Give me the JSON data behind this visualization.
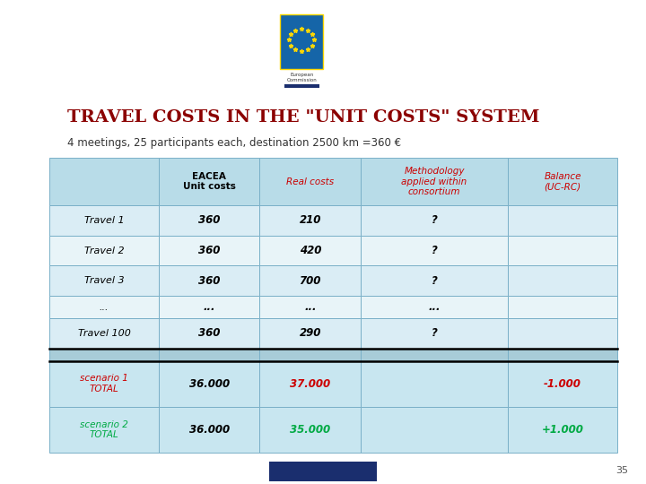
{
  "title": "TRAVEL COSTS IN THE \"UNIT COSTS\" SYSTEM",
  "subtitle": "4 meetings, 25 participants each, destination 2500 km =360 €",
  "title_color": "#8B0000",
  "subtitle_color": "#333333",
  "slide_bg": "#FFFFFF",
  "top_bar_color": "#1565a8",
  "table_header_bg": "#b8dce8",
  "table_data_bg_odd": "#daedf5",
  "table_data_bg_even": "#e8f4f8",
  "table_separator_bg": "#a8ccd8",
  "table_scenario_bg": "#c8e6f0",
  "table_border_color": "#7ab0c8",
  "table_border_heavy": "#000000",
  "col_headers": [
    "EACEA\nUnit costs",
    "Real costs",
    "Methodology\napplied within\nconsortium",
    "Balance\n(UC-RC)"
  ],
  "col_header_colors": [
    "#000000",
    "#cc0000",
    "#cc0000",
    "#cc0000"
  ],
  "rows": [
    {
      "label": "Travel 1",
      "eacea": "360",
      "real": "210",
      "method": "?",
      "balance": ""
    },
    {
      "label": "Travel 2",
      "eacea": "360",
      "real": "420",
      "method": "?",
      "balance": ""
    },
    {
      "label": "Travel 3",
      "eacea": "360",
      "real": "700",
      "method": "?",
      "balance": ""
    },
    {
      "label": "...",
      "eacea": "...",
      "real": "...",
      "method": "...",
      "balance": ""
    },
    {
      "label": "Travel 100",
      "eacea": "360",
      "real": "290",
      "method": "?",
      "balance": ""
    },
    {
      "label": "",
      "eacea": "",
      "real": "",
      "method": "",
      "balance": ""
    },
    {
      "label": "scenario 1\nTOTAL",
      "eacea": "36.000",
      "real": "37.000",
      "method": "",
      "balance": "-1.000"
    },
    {
      "label": "scenario 2\nTOTAL",
      "eacea": "36.000",
      "real": "35.000",
      "method": "",
      "balance": "+1.000"
    }
  ],
  "row_label_colors": [
    "#000000",
    "#000000",
    "#000000",
    "#000000",
    "#000000",
    "#000000",
    "#cc0000",
    "#00aa44"
  ],
  "row_real_colors": [
    "#000000",
    "#000000",
    "#000000",
    "#000000",
    "#000000",
    "#000000",
    "#cc0000",
    "#00aa44"
  ],
  "row_balance_colors": [
    "#000000",
    "#000000",
    "#000000",
    "#000000",
    "#000000",
    "#000000",
    "#cc0000",
    "#00aa44"
  ],
  "page_number": "35",
  "bottom_rect_color": "#1a2e6e"
}
